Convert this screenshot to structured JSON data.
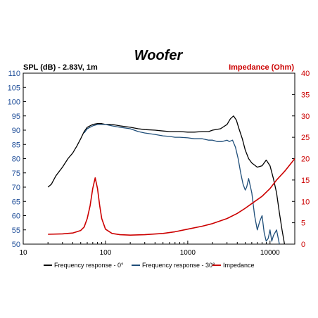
{
  "chart_data": {
    "type": "line",
    "title": "Woofer",
    "ylabel": "SPL (dB) - 2.83V, 1m",
    "y2label": "Impedance (Ohm)",
    "x_scale": "log",
    "xlim": [
      10,
      20000
    ],
    "ylim": [
      50,
      110
    ],
    "y2lim": [
      0,
      40
    ],
    "x_ticks": [
      10,
      100,
      1000,
      10000
    ],
    "x_tick_labels": [
      "10",
      "100",
      "1000",
      "10000"
    ],
    "y_ticks": [
      50,
      55,
      60,
      65,
      70,
      75,
      80,
      85,
      90,
      95,
      100,
      105,
      110
    ],
    "y_tick_labels": [
      "50",
      "55",
      "60",
      "65",
      "70",
      "75",
      "80",
      "85",
      "90",
      "95",
      "100",
      "105",
      "110"
    ],
    "y2_ticks": [
      0,
      5,
      10,
      15,
      20,
      25,
      30,
      35,
      40
    ],
    "y2_tick_labels": [
      "0",
      "5",
      "10",
      "15",
      "20",
      "25",
      "30",
      "35",
      "40"
    ],
    "grid": false,
    "legend_position": "bottom",
    "series": [
      {
        "name": "Frequency response - 0°",
        "color": "#000000",
        "axis": "left",
        "x": [
          20,
          22,
          25,
          30,
          35,
          40,
          45,
          50,
          55,
          60,
          70,
          80,
          90,
          100,
          120,
          150,
          200,
          250,
          300,
          400,
          500,
          600,
          700,
          800,
          1000,
          1200,
          1500,
          1800,
          2000,
          2500,
          3000,
          3300,
          3600,
          3900,
          4200,
          4600,
          5000,
          5500,
          6000,
          7000,
          8000,
          9000,
          10000,
          11000,
          12000,
          13000,
          14000,
          15000
        ],
        "y": [
          70,
          71,
          74,
          77,
          80,
          82,
          84.5,
          87,
          89.5,
          91,
          92,
          92.3,
          92.3,
          92,
          92,
          91.5,
          91,
          90.5,
          90.2,
          90,
          89.7,
          89.5,
          89.5,
          89.5,
          89.3,
          89.3,
          89.5,
          89.5,
          90,
          90.5,
          92,
          94,
          95,
          93.5,
          90.5,
          87,
          83,
          80,
          78.5,
          77,
          77.5,
          79.5,
          77.5,
          73,
          68,
          61,
          55,
          50
        ]
      },
      {
        "name": "Frequency response - 30°",
        "color": "#1f4e79",
        "axis": "left",
        "x": [
          55,
          60,
          70,
          80,
          90,
          100,
          120,
          150,
          200,
          250,
          300,
          400,
          500,
          600,
          700,
          800,
          1000,
          1200,
          1500,
          1800,
          2000,
          2300,
          2600,
          3000,
          3200,
          3500,
          3800,
          4100,
          4400,
          4700,
          5000,
          5200,
          5500,
          6000,
          6500,
          7000,
          7500,
          8000,
          8500,
          9000,
          9500,
          10000,
          10500,
          11000,
          12000,
          13000
        ],
        "y": [
          89,
          90.5,
          91.5,
          92,
          92,
          92,
          91.5,
          91,
          90.5,
          89.5,
          89,
          88.5,
          88,
          87.8,
          87.5,
          87.5,
          87.3,
          87,
          87,
          86.5,
          86.5,
          86,
          86,
          86.5,
          86,
          86.5,
          84,
          80,
          75,
          71,
          69,
          70,
          73,
          68,
          60,
          55,
          58,
          60,
          54,
          51,
          52,
          55,
          51,
          53,
          55,
          50
        ]
      },
      {
        "name": "Impedance",
        "color": "#cc0000",
        "axis": "right",
        "x": [
          20,
          30,
          40,
          50,
          55,
          60,
          65,
          70,
          75,
          80,
          85,
          90,
          100,
          120,
          150,
          200,
          300,
          500,
          700,
          1000,
          1500,
          2000,
          3000,
          4000,
          5000,
          6000,
          7000,
          8000,
          10000,
          12000,
          15000,
          20000
        ],
        "y": [
          2.3,
          2.4,
          2.6,
          3.2,
          4,
          6,
          9,
          13,
          15.5,
          13,
          9,
          6,
          3.5,
          2.5,
          2.2,
          2.1,
          2.2,
          2.5,
          2.9,
          3.5,
          4.2,
          4.8,
          6,
          7.2,
          8.4,
          9.5,
          10.4,
          11.2,
          13,
          15,
          17,
          20
        ]
      }
    ]
  }
}
